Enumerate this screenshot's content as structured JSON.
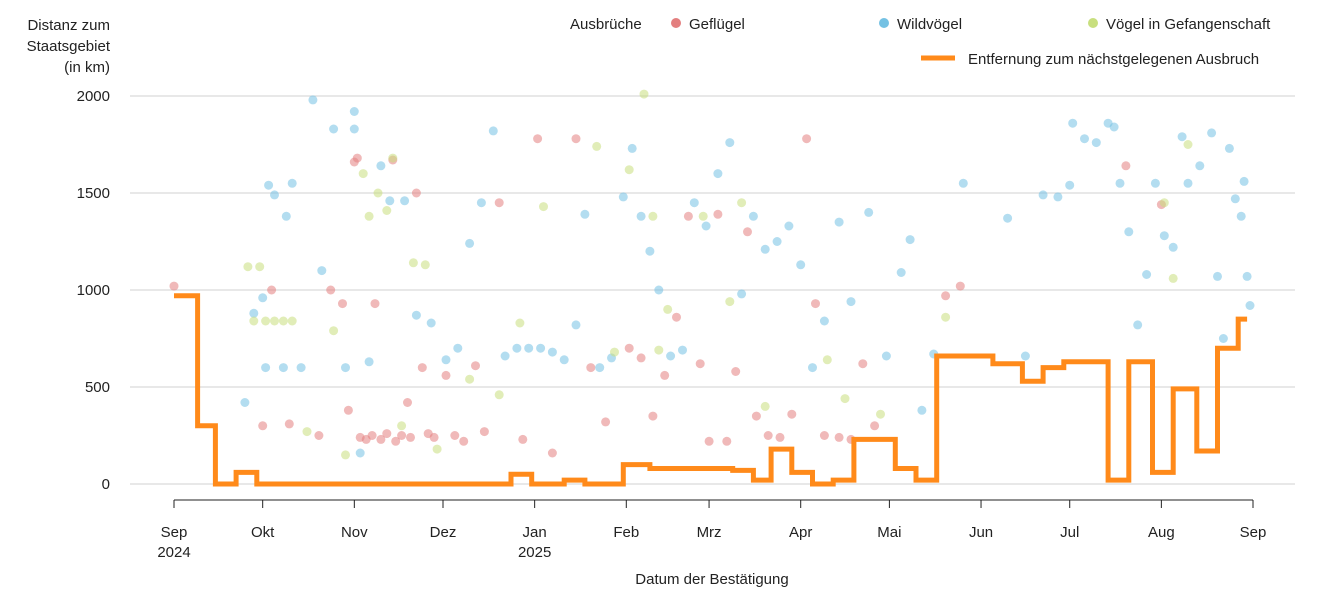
{
  "chart_data": {
    "type": "scatter",
    "ylabel_lines": [
      "Distanz zum",
      "Staatsgebiet",
      "(in km)"
    ],
    "xlabel": "Datum der Bestätigung",
    "ylim": [
      0,
      2000
    ],
    "yticks": [
      0,
      500,
      1000,
      1500,
      2000
    ],
    "grid": true,
    "legend_placement": "top",
    "legend_title": "Ausbrüche",
    "x_ticks": [
      {
        "date": "2024-09-01",
        "label": "Sep",
        "sub": "2024"
      },
      {
        "date": "2024-10-01",
        "label": "Okt",
        "sub": ""
      },
      {
        "date": "2024-11-01",
        "label": "Nov",
        "sub": ""
      },
      {
        "date": "2024-12-01",
        "label": "Dez",
        "sub": ""
      },
      {
        "date": "2025-01-01",
        "label": "Jan",
        "sub": "2025"
      },
      {
        "date": "2025-02-01",
        "label": "Feb",
        "sub": ""
      },
      {
        "date": "2025-03-01",
        "label": "Mrz",
        "sub": ""
      },
      {
        "date": "2025-04-01",
        "label": "Apr",
        "sub": ""
      },
      {
        "date": "2025-05-01",
        "label": "Mai",
        "sub": ""
      },
      {
        "date": "2025-06-01",
        "label": "Jun",
        "sub": ""
      },
      {
        "date": "2025-07-01",
        "label": "Jul",
        "sub": ""
      },
      {
        "date": "2025-08-01",
        "label": "Aug",
        "sub": ""
      },
      {
        "date": "2025-09-01",
        "label": "Sep",
        "sub": ""
      }
    ],
    "series": [
      {
        "name": "Geflügel",
        "color": "#e37f7f",
        "points": [
          [
            "2024-09-01",
            1020
          ],
          [
            "2024-10-01",
            300
          ],
          [
            "2024-10-04",
            1000
          ],
          [
            "2024-10-10",
            310
          ],
          [
            "2024-10-20",
            250
          ],
          [
            "2024-10-24",
            1000
          ],
          [
            "2024-10-28",
            930
          ],
          [
            "2024-10-30",
            380
          ],
          [
            "2024-11-01",
            1660
          ],
          [
            "2024-11-02",
            1680
          ],
          [
            "2024-11-03",
            240
          ],
          [
            "2024-11-05",
            230
          ],
          [
            "2024-11-07",
            250
          ],
          [
            "2024-11-08",
            930
          ],
          [
            "2024-11-10",
            230
          ],
          [
            "2024-11-12",
            260
          ],
          [
            "2024-11-14",
            1670
          ],
          [
            "2024-11-15",
            220
          ],
          [
            "2024-11-17",
            250
          ],
          [
            "2024-11-19",
            420
          ],
          [
            "2024-11-20",
            240
          ],
          [
            "2024-11-22",
            1500
          ],
          [
            "2024-11-24",
            600
          ],
          [
            "2024-11-26",
            260
          ],
          [
            "2024-11-28",
            240
          ],
          [
            "2024-12-02",
            560
          ],
          [
            "2024-12-05",
            250
          ],
          [
            "2024-12-08",
            220
          ],
          [
            "2024-12-12",
            610
          ],
          [
            "2024-12-15",
            270
          ],
          [
            "2024-12-20",
            1450
          ],
          [
            "2024-12-28",
            230
          ],
          [
            "2025-01-02",
            1780
          ],
          [
            "2025-01-07",
            160
          ],
          [
            "2025-01-15",
            1780
          ],
          [
            "2025-01-20",
            600
          ],
          [
            "2025-01-25",
            320
          ],
          [
            "2025-02-02",
            700
          ],
          [
            "2025-02-06",
            650
          ],
          [
            "2025-02-10",
            350
          ],
          [
            "2025-02-14",
            560
          ],
          [
            "2025-02-18",
            860
          ],
          [
            "2025-02-22",
            1380
          ],
          [
            "2025-02-26",
            620
          ],
          [
            "2025-03-01",
            220
          ],
          [
            "2025-03-04",
            1390
          ],
          [
            "2025-03-07",
            220
          ],
          [
            "2025-03-10",
            580
          ],
          [
            "2025-03-14",
            1300
          ],
          [
            "2025-03-17",
            350
          ],
          [
            "2025-03-21",
            250
          ],
          [
            "2025-03-25",
            240
          ],
          [
            "2025-03-29",
            360
          ],
          [
            "2025-04-03",
            1780
          ],
          [
            "2025-04-06",
            930
          ],
          [
            "2025-04-09",
            250
          ],
          [
            "2025-04-14",
            240
          ],
          [
            "2025-04-18",
            230
          ],
          [
            "2025-04-22",
            620
          ],
          [
            "2025-04-26",
            300
          ],
          [
            "2025-05-20",
            970
          ],
          [
            "2025-05-25",
            1020
          ],
          [
            "2025-07-20",
            1640
          ],
          [
            "2025-08-01",
            1440
          ]
        ]
      },
      {
        "name": "Wildvögel",
        "color": "#74c1e3",
        "points": [
          [
            "2024-09-25",
            420
          ],
          [
            "2024-09-28",
            880
          ],
          [
            "2024-10-01",
            960
          ],
          [
            "2024-10-02",
            600
          ],
          [
            "2024-10-03",
            1540
          ],
          [
            "2024-10-05",
            1490
          ],
          [
            "2024-10-08",
            600
          ],
          [
            "2024-10-09",
            1380
          ],
          [
            "2024-10-11",
            1550
          ],
          [
            "2024-10-14",
            600
          ],
          [
            "2024-10-18",
            1980
          ],
          [
            "2024-10-21",
            1100
          ],
          [
            "2024-10-25",
            1830
          ],
          [
            "2024-10-29",
            600
          ],
          [
            "2024-11-01",
            1920
          ],
          [
            "2024-11-01",
            1830
          ],
          [
            "2024-11-03",
            160
          ],
          [
            "2024-11-06",
            630
          ],
          [
            "2024-11-10",
            1640
          ],
          [
            "2024-11-13",
            1460
          ],
          [
            "2024-11-18",
            1460
          ],
          [
            "2024-11-22",
            870
          ],
          [
            "2024-11-27",
            830
          ],
          [
            "2024-12-02",
            640
          ],
          [
            "2024-12-06",
            700
          ],
          [
            "2024-12-10",
            1240
          ],
          [
            "2024-12-14",
            1450
          ],
          [
            "2024-12-18",
            1820
          ],
          [
            "2024-12-22",
            660
          ],
          [
            "2024-12-26",
            700
          ],
          [
            "2024-12-30",
            700
          ],
          [
            "2025-01-03",
            700
          ],
          [
            "2025-01-07",
            680
          ],
          [
            "2025-01-11",
            640
          ],
          [
            "2025-01-15",
            820
          ],
          [
            "2025-01-18",
            1390
          ],
          [
            "2025-01-23",
            600
          ],
          [
            "2025-01-27",
            650
          ],
          [
            "2025-01-31",
            1480
          ],
          [
            "2025-02-03",
            1730
          ],
          [
            "2025-02-06",
            1380
          ],
          [
            "2025-02-09",
            1200
          ],
          [
            "2025-02-12",
            1000
          ],
          [
            "2025-02-16",
            660
          ],
          [
            "2025-02-20",
            690
          ],
          [
            "2025-02-24",
            1450
          ],
          [
            "2025-02-28",
            1330
          ],
          [
            "2025-03-04",
            1600
          ],
          [
            "2025-03-08",
            1760
          ],
          [
            "2025-03-12",
            980
          ],
          [
            "2025-03-16",
            1380
          ],
          [
            "2025-03-20",
            1210
          ],
          [
            "2025-03-24",
            1250
          ],
          [
            "2025-03-28",
            1330
          ],
          [
            "2025-04-01",
            1130
          ],
          [
            "2025-04-05",
            600
          ],
          [
            "2025-04-09",
            840
          ],
          [
            "2025-04-14",
            1350
          ],
          [
            "2025-04-18",
            940
          ],
          [
            "2025-04-24",
            1400
          ],
          [
            "2025-04-30",
            660
          ],
          [
            "2025-05-05",
            1090
          ],
          [
            "2025-05-08",
            1260
          ],
          [
            "2025-05-12",
            380
          ],
          [
            "2025-05-16",
            670
          ],
          [
            "2025-05-26",
            1550
          ],
          [
            "2025-06-10",
            1370
          ],
          [
            "2025-06-16",
            660
          ],
          [
            "2025-06-22",
            1490
          ],
          [
            "2025-06-27",
            1480
          ],
          [
            "2025-07-01",
            1540
          ],
          [
            "2025-07-02",
            1860
          ],
          [
            "2025-07-06",
            1780
          ],
          [
            "2025-07-10",
            1760
          ],
          [
            "2025-07-14",
            1860
          ],
          [
            "2025-07-16",
            1840
          ],
          [
            "2025-07-18",
            1550
          ],
          [
            "2025-07-21",
            1300
          ],
          [
            "2025-07-24",
            820
          ],
          [
            "2025-07-27",
            1080
          ],
          [
            "2025-07-30",
            1550
          ],
          [
            "2025-08-02",
            1280
          ],
          [
            "2025-08-05",
            1220
          ],
          [
            "2025-08-08",
            1790
          ],
          [
            "2025-08-10",
            1550
          ],
          [
            "2025-08-14",
            1640
          ],
          [
            "2025-08-18",
            1810
          ],
          [
            "2025-08-20",
            1070
          ],
          [
            "2025-08-22",
            750
          ],
          [
            "2025-08-24",
            1730
          ],
          [
            "2025-08-26",
            1470
          ],
          [
            "2025-08-28",
            1380
          ],
          [
            "2025-08-29",
            1560
          ],
          [
            "2025-08-30",
            1070
          ],
          [
            "2025-08-31",
            920
          ]
        ]
      },
      {
        "name": "Vögel in Gefangenschaft",
        "color": "#c8df7e",
        "points": [
          [
            "2024-09-26",
            1120
          ],
          [
            "2024-09-28",
            840
          ],
          [
            "2024-09-30",
            1120
          ],
          [
            "2024-10-02",
            840
          ],
          [
            "2024-10-05",
            840
          ],
          [
            "2024-10-08",
            840
          ],
          [
            "2024-10-11",
            840
          ],
          [
            "2024-10-16",
            270
          ],
          [
            "2024-10-25",
            790
          ],
          [
            "2024-10-29",
            150
          ],
          [
            "2024-11-04",
            1600
          ],
          [
            "2024-11-06",
            1380
          ],
          [
            "2024-11-09",
            1500
          ],
          [
            "2024-11-12",
            1410
          ],
          [
            "2024-11-14",
            1680
          ],
          [
            "2024-11-17",
            300
          ],
          [
            "2024-11-21",
            1140
          ],
          [
            "2024-11-25",
            1130
          ],
          [
            "2024-11-29",
            180
          ],
          [
            "2024-12-10",
            540
          ],
          [
            "2024-12-20",
            460
          ],
          [
            "2024-12-27",
            830
          ],
          [
            "2025-01-04",
            1430
          ],
          [
            "2025-01-22",
            1740
          ],
          [
            "2025-01-28",
            680
          ],
          [
            "2025-02-02",
            1620
          ],
          [
            "2025-02-07",
            2010
          ],
          [
            "2025-02-10",
            1380
          ],
          [
            "2025-02-12",
            690
          ],
          [
            "2025-02-15",
            900
          ],
          [
            "2025-02-27",
            1380
          ],
          [
            "2025-03-08",
            940
          ],
          [
            "2025-03-12",
            1450
          ],
          [
            "2025-03-20",
            400
          ],
          [
            "2025-04-10",
            640
          ],
          [
            "2025-04-16",
            440
          ],
          [
            "2025-04-28",
            360
          ],
          [
            "2025-05-20",
            860
          ],
          [
            "2025-08-02",
            1450
          ],
          [
            "2025-08-05",
            1060
          ],
          [
            "2025-08-10",
            1750
          ]
        ]
      },
      {
        "name": "Entfernung zum nächstgelegenen Ausbruch",
        "type": "step",
        "color": "#ff8a1a",
        "points": [
          [
            "2024-09-01",
            970
          ],
          [
            "2024-09-09",
            970
          ],
          [
            "2024-09-09",
            300
          ],
          [
            "2024-09-15",
            300
          ],
          [
            "2024-09-15",
            0
          ],
          [
            "2024-09-22",
            0
          ],
          [
            "2024-09-22",
            60
          ],
          [
            "2024-09-29",
            60
          ],
          [
            "2024-09-29",
            0
          ],
          [
            "2024-12-24",
            0
          ],
          [
            "2024-12-24",
            50
          ],
          [
            "2024-12-31",
            50
          ],
          [
            "2024-12-31",
            0
          ],
          [
            "2025-01-11",
            0
          ],
          [
            "2025-01-11",
            20
          ],
          [
            "2025-01-18",
            20
          ],
          [
            "2025-01-18",
            0
          ],
          [
            "2025-01-31",
            0
          ],
          [
            "2025-01-31",
            100
          ],
          [
            "2025-02-09",
            100
          ],
          [
            "2025-02-09",
            80
          ],
          [
            "2025-03-09",
            80
          ],
          [
            "2025-03-09",
            70
          ],
          [
            "2025-03-16",
            70
          ],
          [
            "2025-03-16",
            20
          ],
          [
            "2025-03-22",
            20
          ],
          [
            "2025-03-22",
            180
          ],
          [
            "2025-03-29",
            180
          ],
          [
            "2025-03-29",
            60
          ],
          [
            "2025-04-05",
            60
          ],
          [
            "2025-04-05",
            0
          ],
          [
            "2025-04-12",
            0
          ],
          [
            "2025-04-12",
            20
          ],
          [
            "2025-04-19",
            20
          ],
          [
            "2025-04-19",
            230
          ],
          [
            "2025-05-03",
            230
          ],
          [
            "2025-05-03",
            80
          ],
          [
            "2025-05-10",
            80
          ],
          [
            "2025-05-10",
            20
          ],
          [
            "2025-05-17",
            20
          ],
          [
            "2025-05-17",
            660
          ],
          [
            "2025-06-05",
            660
          ],
          [
            "2025-06-05",
            620
          ],
          [
            "2025-06-15",
            620
          ],
          [
            "2025-06-15",
            530
          ],
          [
            "2025-06-22",
            530
          ],
          [
            "2025-06-22",
            600
          ],
          [
            "2025-06-29",
            600
          ],
          [
            "2025-06-29",
            630
          ],
          [
            "2025-07-14",
            630
          ],
          [
            "2025-07-14",
            20
          ],
          [
            "2025-07-21",
            20
          ],
          [
            "2025-07-21",
            630
          ],
          [
            "2025-07-29",
            630
          ],
          [
            "2025-07-29",
            60
          ],
          [
            "2025-08-05",
            60
          ],
          [
            "2025-08-05",
            490
          ],
          [
            "2025-08-13",
            490
          ],
          [
            "2025-08-13",
            170
          ],
          [
            "2025-08-20",
            170
          ],
          [
            "2025-08-20",
            700
          ],
          [
            "2025-08-27",
            700
          ],
          [
            "2025-08-27",
            850
          ],
          [
            "2025-08-30",
            850
          ]
        ]
      }
    ]
  }
}
